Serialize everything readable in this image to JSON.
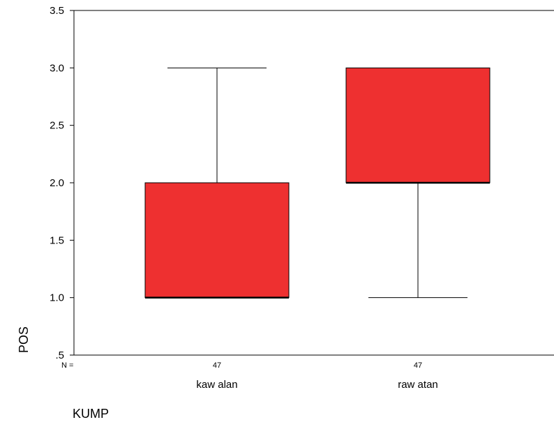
{
  "chart_data": {
    "type": "box",
    "title": "",
    "xlabel": "KUMP",
    "ylabel": "POS",
    "ylim": [
      0.5,
      3.5
    ],
    "yticks": [
      ".5",
      "1.0",
      "1.5",
      "2.0",
      "2.5",
      "3.0",
      "3.5"
    ],
    "ytick_values": [
      0.5,
      1.0,
      1.5,
      2.0,
      2.5,
      3.0,
      3.5
    ],
    "n_prefix": "N =",
    "box_color": "#ee3030",
    "categories": [
      "kaw alan",
      "raw atan"
    ],
    "n": [
      "47",
      "47"
    ],
    "boxes": [
      {
        "category": "kaw alan",
        "whisker_low": 1.0,
        "q1": 1.0,
        "median": 1.0,
        "q3": 2.0,
        "whisker_high": 3.0
      },
      {
        "category": "raw atan",
        "whisker_low": 1.0,
        "q1": 2.0,
        "median": 2.0,
        "q3": 3.0,
        "whisker_high": 3.0
      }
    ]
  }
}
